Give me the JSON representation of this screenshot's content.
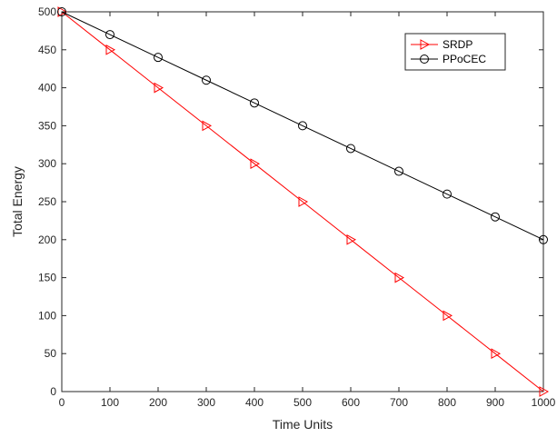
{
  "chart_data": {
    "type": "line",
    "title": "",
    "xlabel": "Time Units",
    "ylabel": "Total Energy",
    "xlim": [
      0,
      1000
    ],
    "ylim": [
      0,
      500
    ],
    "x_ticks": [
      0,
      100,
      200,
      300,
      400,
      500,
      600,
      700,
      800,
      900,
      1000
    ],
    "y_ticks": [
      0,
      50,
      100,
      150,
      200,
      250,
      300,
      350,
      400,
      450,
      500
    ],
    "grid": false,
    "legend_position": "top-right",
    "x": [
      0,
      100,
      200,
      300,
      400,
      500,
      600,
      700,
      800,
      900,
      1000
    ],
    "series": [
      {
        "name": "SRDP",
        "color": "#ff0000",
        "marker": "triangle-right",
        "values": [
          500,
          450,
          400,
          350,
          300,
          250,
          200,
          150,
          100,
          50,
          0
        ]
      },
      {
        "name": "PPoCEC",
        "color": "#000000",
        "marker": "circle",
        "values": [
          500,
          470,
          440,
          410,
          380,
          350,
          320,
          290,
          260,
          230,
          200
        ]
      }
    ]
  }
}
